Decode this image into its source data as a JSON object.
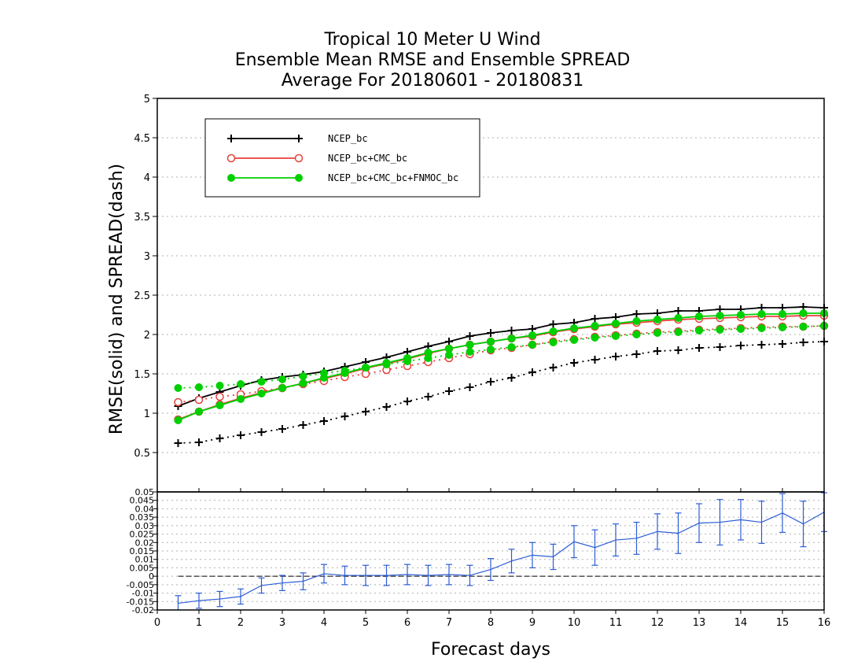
{
  "title_lines": [
    "Tropical 10 Meter U Wind",
    "Ensemble Mean RMSE and Ensemble SPREAD",
    "Average For 20180601 - 20180831"
  ],
  "colors": {
    "ncep": "#000000",
    "ncep_cmc": "#e8413c",
    "ncep_cmc_fnmoc": "#00d000",
    "diff": "#2b5cd6",
    "grid": "#b0b0b0"
  },
  "chart_data": [
    {
      "type": "line",
      "panel": "top",
      "xlabel": "Forecast days",
      "ylabel": "RMSE(solid) and SPREAD(dash)",
      "xlim": [
        0,
        16
      ],
      "ylim": [
        0,
        5
      ],
      "x_ticks": [
        "0",
        "1",
        "2",
        "3",
        "4",
        "5",
        "6",
        "7",
        "8",
        "9",
        "10",
        "11",
        "12",
        "13",
        "14",
        "15",
        "16"
      ],
      "y_ticks": [
        "0.5",
        "1",
        "1.5",
        "2",
        "2.5",
        "3",
        "3.5",
        "4",
        "4.5",
        "5"
      ],
      "grid": true,
      "legend_position": "top-left",
      "x": [
        0.5,
        1,
        1.5,
        2,
        2.5,
        3,
        3.5,
        4,
        4.5,
        5,
        5.5,
        6,
        6.5,
        7,
        7.5,
        8,
        8.5,
        9,
        9.5,
        10,
        10.5,
        11,
        11.5,
        12,
        12.5,
        13,
        13.5,
        14,
        14.5,
        15,
        15.5,
        16
      ],
      "series": [
        {
          "name": "NCEP_bc",
          "style": "solid",
          "marker": "plus",
          "color_key": "ncep",
          "values": [
            1.09,
            1.19,
            1.27,
            1.35,
            1.42,
            1.46,
            1.49,
            1.53,
            1.59,
            1.65,
            1.71,
            1.78,
            1.85,
            1.91,
            1.98,
            2.02,
            2.05,
            2.07,
            2.13,
            2.15,
            2.2,
            2.22,
            2.26,
            2.27,
            2.3,
            2.3,
            2.32,
            2.32,
            2.34,
            2.34,
            2.35,
            2.34
          ]
        },
        {
          "name": "NCEP_bc",
          "style": "dotted",
          "marker": "plus",
          "color_key": "ncep",
          "values": [
            0.62,
            0.63,
            0.68,
            0.72,
            0.76,
            0.8,
            0.85,
            0.9,
            0.96,
            1.02,
            1.08,
            1.15,
            1.21,
            1.28,
            1.33,
            1.4,
            1.45,
            1.52,
            1.58,
            1.64,
            1.68,
            1.72,
            1.75,
            1.79,
            1.8,
            1.83,
            1.84,
            1.86,
            1.87,
            1.88,
            1.9,
            1.91
          ]
        },
        {
          "name": "NCEP_bc+CMC_bc",
          "style": "solid",
          "marker": "circle",
          "color_key": "ncep_cmc",
          "values": [
            0.92,
            1.02,
            1.11,
            1.19,
            1.26,
            1.32,
            1.38,
            1.44,
            1.5,
            1.57,
            1.63,
            1.69,
            1.76,
            1.82,
            1.87,
            1.91,
            1.95,
            1.98,
            2.03,
            2.07,
            2.1,
            2.13,
            2.15,
            2.17,
            2.19,
            2.2,
            2.21,
            2.22,
            2.23,
            2.23,
            2.24,
            2.24
          ]
        },
        {
          "name": "NCEP_bc+CMC_bc",
          "style": "dotted",
          "marker": "circle",
          "color_key": "ncep_cmc",
          "values": [
            1.14,
            1.17,
            1.21,
            1.24,
            1.28,
            1.32,
            1.37,
            1.41,
            1.46,
            1.5,
            1.55,
            1.6,
            1.65,
            1.7,
            1.75,
            1.8,
            1.83,
            1.87,
            1.91,
            1.94,
            1.97,
            1.99,
            2.01,
            2.03,
            2.04,
            2.06,
            2.07,
            2.08,
            2.09,
            2.1,
            2.1,
            2.11
          ]
        },
        {
          "name": "NCEP_bc+CMC_bc+FNMOC_bc",
          "style": "solid",
          "marker": "dot",
          "color_key": "ncep_cmc_fnmoc",
          "values": [
            0.91,
            1.02,
            1.1,
            1.18,
            1.25,
            1.32,
            1.38,
            1.45,
            1.51,
            1.58,
            1.64,
            1.7,
            1.77,
            1.82,
            1.87,
            1.91,
            1.95,
            1.99,
            2.04,
            2.08,
            2.11,
            2.14,
            2.17,
            2.19,
            2.21,
            2.23,
            2.24,
            2.25,
            2.26,
            2.26,
            2.27,
            2.27
          ]
        },
        {
          "name": "NCEP_bc+CMC_bc+FNMOC_bc",
          "style": "dotted",
          "marker": "dot",
          "color_key": "ncep_cmc_fnmoc",
          "values": [
            1.32,
            1.33,
            1.35,
            1.37,
            1.4,
            1.43,
            1.47,
            1.51,
            1.54,
            1.58,
            1.62,
            1.66,
            1.7,
            1.74,
            1.78,
            1.81,
            1.84,
            1.87,
            1.9,
            1.93,
            1.96,
            1.98,
            2,
            2.02,
            2.03,
            2.05,
            2.06,
            2.07,
            2.08,
            2.09,
            2.1,
            2.11
          ]
        }
      ],
      "legend": [
        {
          "label": "NCEP_bc",
          "marker": "plus",
          "color_key": "ncep"
        },
        {
          "label": "NCEP_bc+CMC_bc",
          "marker": "circle",
          "color_key": "ncep_cmc"
        },
        {
          "label": "NCEP_bc+CMC_bc+FNMOC_bc",
          "marker": "dot",
          "color_key": "ncep_cmc_fnmoc"
        }
      ]
    },
    {
      "type": "line",
      "panel": "bottom",
      "xlim": [
        0,
        16
      ],
      "ylim": [
        -0.02,
        0.05
      ],
      "y_ticks": [
        "-0.02",
        "-0.015",
        "-0.01",
        "-0.005",
        "0",
        "0.005",
        "0.01",
        "0.015",
        "0.02",
        "0.025",
        "0.03",
        "0.035",
        "0.04",
        "0.045",
        "0.05"
      ],
      "grid": true,
      "x": [
        0.5,
        1,
        1.5,
        2,
        2.5,
        3,
        3.5,
        4,
        4.5,
        5,
        5.5,
        6,
        6.5,
        7,
        7.5,
        8,
        8.5,
        9,
        9.5,
        10,
        10.5,
        11,
        11.5,
        12,
        12.5,
        13,
        13.5,
        14,
        14.5,
        15,
        15.5,
        16
      ],
      "series": [
        {
          "name": "",
          "style": "solid",
          "marker": "errorbar",
          "color_key": "diff",
          "values": [
            -0.016,
            -0.0145,
            -0.0135,
            -0.012,
            -0.0055,
            -0.004,
            -0.003,
            0.0015,
            0.0005,
            0.0005,
            0.0005,
            0.001,
            0.0005,
            0.001,
            0.0005,
            0.004,
            0.009,
            0.0125,
            0.0115,
            0.0205,
            0.017,
            0.0215,
            0.0225,
            0.0265,
            0.0255,
            0.0315,
            0.032,
            0.0335,
            0.032,
            0.0375,
            0.031,
            0.038
          ],
          "err": [
            0.0045,
            0.0045,
            0.0045,
            0.0045,
            0.0045,
            0.0045,
            0.005,
            0.0055,
            0.0055,
            0.006,
            0.006,
            0.006,
            0.006,
            0.006,
            0.006,
            0.0065,
            0.007,
            0.0075,
            0.0075,
            0.0095,
            0.0105,
            0.0095,
            0.0095,
            0.0105,
            0.012,
            0.0115,
            0.0135,
            0.012,
            0.0125,
            0.0115,
            0.0135,
            0.0115
          ]
        }
      ]
    }
  ]
}
